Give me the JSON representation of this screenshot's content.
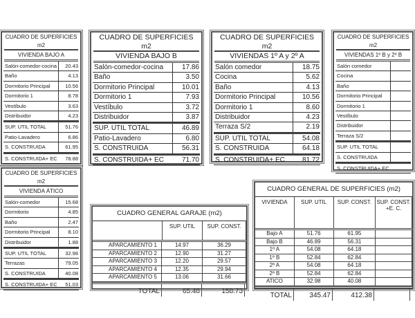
{
  "room_tables": [
    {
      "title": "CUADRO DE SUPERFICIES",
      "unit": "m2",
      "name": "VIVIENDA BAJO A",
      "rows": [
        [
          "Salón-comedor-cocina",
          "20.43"
        ],
        [
          "Baño",
          "4.13"
        ],
        [
          "Dormitorio Principal",
          "10.56"
        ],
        [
          "Dormitorio 1",
          "8.78"
        ],
        [
          "Vestíbulo",
          "3.63"
        ],
        [
          "Distribuidor",
          "4.23"
        ],
        [
          "SUP. UTIL TOTAL",
          "51.76"
        ],
        [
          "Patio-Lavadero",
          "6.86"
        ],
        [
          "S. CONSTRUIDA",
          "61.95"
        ],
        [
          "S. CONSTRUIDA+ EC",
          "78.88"
        ]
      ]
    },
    {
      "title": "CUADRO DE SUPERFICIES",
      "unit": "m2",
      "name": "VIVIENDA BAJO B",
      "rows": [
        [
          "Salón-comedor-cocina",
          "17.86"
        ],
        [
          "Baño",
          "3.50"
        ],
        [
          "Dormitorio Principal",
          "10.01"
        ],
        [
          "Dormitorio 1",
          "7.93"
        ],
        [
          "Vestíbulo",
          "3.72"
        ],
        [
          "Distribuidor",
          "3.87"
        ],
        [
          "SUP. UTIL TOTAL",
          "46.89"
        ],
        [
          "Patio-Lavadero",
          "6.80"
        ],
        [
          "S. CONSTRUIDA",
          "56.31"
        ],
        [
          "S. CONSTRUIDA+ EC",
          "71.70"
        ]
      ]
    },
    {
      "title": "CUADRO DE SUPERFICIES",
      "unit": "m2",
      "name": "VIVIENDAS 1º A y 2º A",
      "rows": [
        [
          "Salón comedor",
          "18.75"
        ],
        [
          "Cocina",
          "5.62"
        ],
        [
          "Baño",
          "4.13"
        ],
        [
          "Dormitorio Principal",
          "10.56"
        ],
        [
          "Dormitorio 1",
          "8.60"
        ],
        [
          "Distribuidor",
          "4.23"
        ],
        [
          "Terraza S/2",
          "2.19"
        ],
        [
          "SUP. UTIL TOTAL",
          "54.08"
        ],
        [
          "S. CONSTRUIDA",
          "64.18"
        ],
        [
          "S. CONSTRUIDA+ EC",
          "81.72"
        ]
      ]
    },
    {
      "title": "CUADRO DE SUPERFICIES",
      "unit": "m2",
      "name": "VIVIENDAS 1º B y 2º B",
      "rows": [
        [
          "Salón comedor",
          ""
        ],
        [
          "Cocina",
          ""
        ],
        [
          "Baño",
          ""
        ],
        [
          "Dormitorio Principal",
          ""
        ],
        [
          "Dormitorio 1",
          ""
        ],
        [
          "Vestíbulo",
          ""
        ],
        [
          "Distribuidor",
          ""
        ],
        [
          "Terraza S/2",
          ""
        ],
        [
          "SUP. UTIL TOTAL",
          ""
        ],
        [
          "S. CONSTRUIDA",
          ""
        ],
        [
          "S. CONSTRUIDA+ EC",
          ""
        ]
      ]
    },
    {
      "title": "CUADRO DE SUPERFICIES",
      "unit": "m2",
      "name": "VIVIENDA ÁTICO",
      "rows": [
        [
          "Salón-comedor",
          "15.68"
        ],
        [
          "Dormitorio",
          "4.85"
        ],
        [
          "Baño",
          "2.47"
        ],
        [
          "Dormitorio Principal",
          "8.10"
        ],
        [
          "Distribuidor",
          "1.88"
        ],
        [
          "SUP. UTIL TOTAL",
          "32.98"
        ],
        [
          "Terrazas",
          "79.05"
        ],
        [
          "S. CONSTRUIDA",
          "40.08"
        ],
        [
          "S. CONSTRUIDA+ EC",
          "51.03"
        ]
      ]
    }
  ],
  "garage": {
    "title": "CUADRO GENERAL GARAJE (m2)",
    "headers": [
      "",
      "SUP. UTIL",
      "SUP. CONST."
    ],
    "rows": [
      [
        "APARCAMIENTO 1",
        "14.97",
        "36.29"
      ],
      [
        "APARCAMIENTO 2",
        "12.90",
        "31.27"
      ],
      [
        "APARCAMIENTO 3",
        "12.20",
        "29.57"
      ],
      [
        "APARCAMIENTO 4",
        "12.35",
        "29.94"
      ],
      [
        "APARCAMIENTO 5",
        "13.06",
        "31.66"
      ]
    ],
    "total": [
      "TOTAL",
      "65.48",
      "158.73"
    ]
  },
  "general": {
    "title": "CUADRO GENERAL DE SUPERFICIES (m2)",
    "headers": [
      "VIVIENDA",
      "SUP. UTIL",
      "SUP. CONST.",
      "SUP. CONST. +E. C."
    ],
    "rows": [
      [
        "Bajo A",
        "51.76",
        "61.95",
        ""
      ],
      [
        "Bajo B",
        "46.89",
        "56.31",
        ""
      ],
      [
        "1º A",
        "54.08",
        "64.18",
        ""
      ],
      [
        "1º B",
        "52.84",
        "62.84",
        ""
      ],
      [
        "2º A",
        "54.08",
        "64.18",
        ""
      ],
      [
        "2º B",
        "52.84",
        "62.84",
        ""
      ],
      [
        "ATICO",
        "32.98",
        "40.08",
        ""
      ]
    ],
    "total": [
      "TOTAL",
      "345.47",
      "412.38",
      ""
    ]
  }
}
